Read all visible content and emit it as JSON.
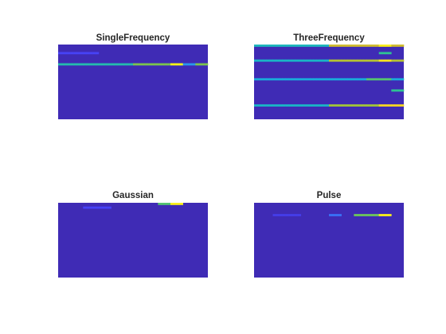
{
  "figure": {
    "background": "#ffffff",
    "colormap": [
      "#3e26a8",
      "#4743f8",
      "#2f8ef4",
      "#15b1d3",
      "#2ec293",
      "#8fc53c",
      "#e4b92c",
      "#f9dc24",
      "#f9fb15"
    ]
  },
  "chart_data": [
    {
      "type": "heatmap",
      "title": "SingleFrequency",
      "xlabel": "",
      "ylabel": "",
      "grid": false,
      "legend": "none",
      "rows": 20,
      "cols": 48,
      "background_level": 0.02,
      "hot_bands": [
        {
          "row": 5,
          "col_start": 0,
          "col_end": 47,
          "level": 0.45
        },
        {
          "row": 5,
          "col_start": 24,
          "col_end": 47,
          "level": 0.6
        },
        {
          "row": 5,
          "col_start": 36,
          "col_end": 39,
          "level": 0.98
        },
        {
          "row": 5,
          "col_start": 40,
          "col_end": 43,
          "level": 0.28
        },
        {
          "row": 2,
          "col_start": 0,
          "col_end": 12,
          "level": 0.12
        }
      ]
    },
    {
      "type": "heatmap",
      "title": "ThreeFrequency",
      "xlabel": "",
      "ylabel": "",
      "grid": false,
      "legend": "none",
      "rows": 20,
      "cols": 48,
      "background_level": 0.02,
      "hot_bands": [
        {
          "row": 0,
          "col_start": 0,
          "col_end": 47,
          "level": 0.42
        },
        {
          "row": 0,
          "col_start": 24,
          "col_end": 47,
          "level": 0.72
        },
        {
          "row": 0,
          "col_start": 40,
          "col_end": 43,
          "level": 0.95
        },
        {
          "row": 4,
          "col_start": 0,
          "col_end": 47,
          "level": 0.4
        },
        {
          "row": 4,
          "col_start": 24,
          "col_end": 47,
          "level": 0.68
        },
        {
          "row": 4,
          "col_start": 40,
          "col_end": 43,
          "level": 0.9
        },
        {
          "row": 9,
          "col_start": 0,
          "col_end": 47,
          "level": 0.35
        },
        {
          "row": 9,
          "col_start": 36,
          "col_end": 43,
          "level": 0.55
        },
        {
          "row": 16,
          "col_start": 0,
          "col_end": 47,
          "level": 0.4
        },
        {
          "row": 16,
          "col_start": 24,
          "col_end": 47,
          "level": 0.65
        },
        {
          "row": 16,
          "col_start": 40,
          "col_end": 47,
          "level": 0.85
        },
        {
          "row": 2,
          "col_start": 40,
          "col_end": 43,
          "level": 0.5
        },
        {
          "row": 12,
          "col_start": 44,
          "col_end": 47,
          "level": 0.5
        }
      ]
    },
    {
      "type": "heatmap",
      "title": "Gaussian",
      "xlabel": "",
      "ylabel": "",
      "grid": false,
      "legend": "none",
      "rows": 20,
      "cols": 48,
      "background_level": 0.02,
      "hot_bands": [
        {
          "row": 0,
          "col_start": 32,
          "col_end": 35,
          "level": 0.55
        },
        {
          "row": 0,
          "col_start": 36,
          "col_end": 39,
          "level": 0.95
        },
        {
          "row": 1,
          "col_start": 8,
          "col_end": 16,
          "level": 0.12
        }
      ]
    },
    {
      "type": "heatmap",
      "title": "Pulse",
      "xlabel": "",
      "ylabel": "",
      "grid": false,
      "legend": "none",
      "rows": 20,
      "cols": 48,
      "background_level": 0.02,
      "hot_bands": [
        {
          "row": 3,
          "col_start": 32,
          "col_end": 39,
          "level": 0.58
        },
        {
          "row": 3,
          "col_start": 40,
          "col_end": 43,
          "level": 0.95
        },
        {
          "row": 3,
          "col_start": 24,
          "col_end": 27,
          "level": 0.2
        },
        {
          "row": 3,
          "col_start": 6,
          "col_end": 14,
          "level": 0.1
        }
      ]
    }
  ]
}
